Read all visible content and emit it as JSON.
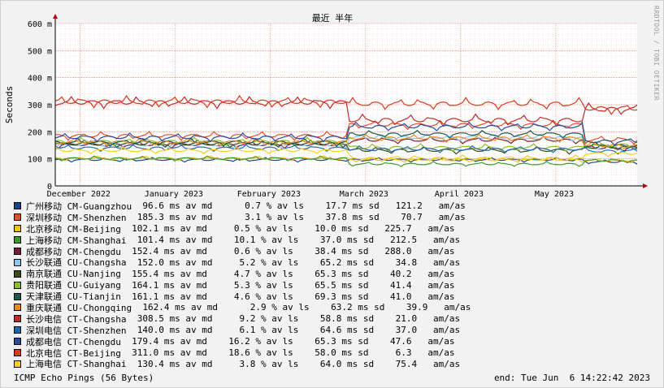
{
  "chart_data": {
    "type": "line",
    "title": "最近 半年",
    "ylabel": "Seconds",
    "ylim": [
      0,
      600
    ],
    "y_ticks": [
      "0",
      "100 m",
      "200 m",
      "300 m",
      "400 m",
      "500 m",
      "600 m"
    ],
    "x_ticks": [
      "December 2022",
      "January 2023",
      "February 2023",
      "March 2023",
      "April 2023",
      "May 2023"
    ],
    "watermark": "RRDTOOL / TOBI OETIKER",
    "series": [
      {
        "name": "广州移动 CM-Guangzhou",
        "color": "#1f3f8f",
        "stats": "96.6 ms av md      0.7 % av ls    17.7 ms sd   121.2   am/as",
        "median": 96.6
      },
      {
        "name": "深圳移动 CM-Shenzhen",
        "color": "#e0502a",
        "stats": "185.3 ms av md      3.1 % av ls    37.8 ms sd    70.7   am/as",
        "median": 185.3
      },
      {
        "name": "北京移动 CM-Beijing",
        "color": "#f2c21a",
        "stats": "102.1 ms av md     0.5 % av ls    10.0 ms sd   225.7   am/as",
        "median": 102.1
      },
      {
        "name": "上海移动 CM-Shanghai",
        "color": "#3f9a2e",
        "stats": "101.4 ms av md    10.1 % av ls    37.0 ms sd   212.5   am/as",
        "median": 101.4
      },
      {
        "name": "成都移动 CM-Chengdu",
        "color": "#7a1a3a",
        "stats": "152.4 ms av md     0.6 % av ls    38.4 ms sd   288.0   am/as",
        "median": 152.4
      },
      {
        "name": "长沙联通 CU-Changsha",
        "color": "#8fc8ef",
        "stats": "152.0 ms av md     5.2 % av ls    65.2 ms sd    34.8   am/as",
        "median": 152.0
      },
      {
        "name": "南京联通 CU-Nanjing",
        "color": "#3a4a1a",
        "stats": "155.4 ms av md     4.7 % av ls    65.3 ms sd    40.2   am/as",
        "median": 155.4
      },
      {
        "name": "贵阳联通 CU-Guiyang",
        "color": "#8cbf2a",
        "stats": "164.1 ms av md     5.3 % av ls    65.5 ms sd    41.4   am/as",
        "median": 164.1
      },
      {
        "name": "天津联通 CU-Tianjin",
        "color": "#1a5a4a",
        "stats": "161.1 ms av md     4.6 % av ls    69.3 ms sd    41.0   am/as",
        "median": 161.1
      },
      {
        "name": "重庆联通 CU-Chongqing",
        "color": "#f08a1a",
        "stats": "162.4 ms av md      2.9 % av ls    63.2 ms sd    39.9   am/as",
        "median": 162.4
      },
      {
        "name": "长沙电信 CT-Changsha",
        "color": "#c02a2a",
        "stats": "308.5 ms av md     9.2 % av ls    58.8 ms sd    21.0   am/as",
        "median": 308.5
      },
      {
        "name": "深圳电信 CT-Shenzhen",
        "color": "#1a6ab0",
        "stats": "140.0 ms av md     6.1 % av ls    64.6 ms sd    37.0   am/as",
        "median": 140.0
      },
      {
        "name": "成都电信 CT-Chengdu",
        "color": "#2a4aa0",
        "stats": "179.4 ms av md    16.2 % av ls    65.3 ms sd    47.6   am/as",
        "median": 179.4
      },
      {
        "name": "北京电信 CT-Beijing",
        "color": "#d83a1a",
        "stats": "311.0 ms av md    18.6 % av ls    58.0 ms sd     6.3   am/as",
        "median": 311.0
      },
      {
        "name": "上海电信 CT-Shanghai",
        "color": "#f5d020",
        "stats": "130.4 ms av md     3.8 % av ls    64.0 ms sd    75.4   am/as",
        "median": 130.4
      }
    ]
  },
  "footer": {
    "left": "ICMP Echo Pings (56 Bytes)",
    "right": "end: Tue Jun  6 14:22:42 2023"
  }
}
